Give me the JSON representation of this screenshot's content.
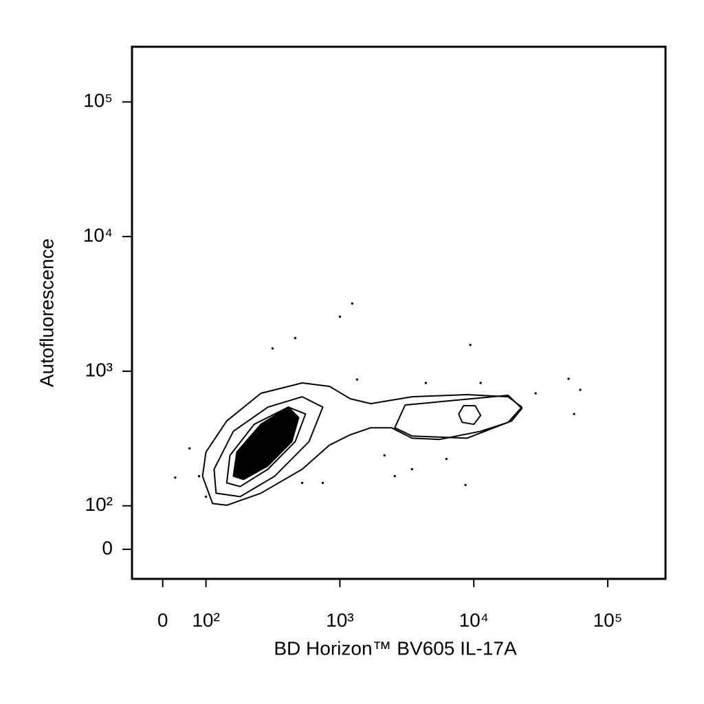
{
  "chart_data": {
    "type": "contour",
    "x_label": "BD Horizon™ BV605 IL-17A",
    "y_label": "Autofluorescence",
    "xscale": "logicle",
    "yscale": "logicle",
    "color": "#000000",
    "xlim": [
      -71,
      270000
    ],
    "ylim": [
      -68,
      257000
    ],
    "xticks": [
      0,
      {
        "value": 100,
        "label": "10²"
      },
      {
        "value": 1000,
        "label": "10³"
      },
      {
        "value": 10000,
        "label": "10⁴"
      },
      {
        "value": 100000,
        "label": "10⁵"
      }
    ],
    "yticks": [
      0,
      {
        "value": 100,
        "label": "10²"
      },
      {
        "value": 1000,
        "label": "10³"
      },
      {
        "value": 10000,
        "label": "10⁴"
      },
      {
        "value": 100000,
        "label": "10⁵"
      }
    ],
    "contours": [
      {
        "filled": false,
        "x": [
          112,
          92,
          100,
          143,
          257,
          523,
          838,
          1194,
          1702,
          2426,
          3455,
          8890,
          18050,
          22860,
          18050,
          11250,
          5546,
          3455,
          2426,
          1702,
          1194,
          838,
          523,
          257,
          143
        ],
        "y": [
          104,
          166,
          251,
          427,
          685,
          818,
          771,
          624,
          574,
          609,
          646,
          670,
          646,
          541,
          417,
          358,
          311,
          318,
          380,
          380,
          337,
          283,
          187,
          124,
          101
        ]
      },
      {
        "filled": false,
        "x": [
          119,
          115,
          160,
          290,
          523,
          745,
          588,
          326,
          180
        ],
        "y": [
          124,
          187,
          358,
          541,
          646,
          541,
          300,
          166,
          117
        ]
      },
      {
        "filled": false,
        "x": [
          143,
          151,
          229,
          412,
          554,
          464,
          290,
          180
        ],
        "y": [
          148,
          237,
          403,
          541,
          481,
          300,
          187,
          139
        ]
      },
      {
        "filled": true,
        "x": [
          160,
          170,
          257,
          412,
          492,
          438,
          290,
          191
        ],
        "y": [
          166,
          251,
          403,
          541,
          453,
          300,
          198,
          157
        ]
      },
      {
        "filled": false,
        "x": [
          3070,
          18050,
          22860,
          19150,
          8890,
          3455,
          2570
        ],
        "y": [
          561,
          662,
          528,
          427,
          318,
          330,
          380
        ]
      },
      {
        "filled": false,
        "x": [
          7710,
          8380,
          10240,
          11250,
          10000,
          8180
        ],
        "y": [
          481,
          554,
          554,
          469,
          403,
          417
        ]
      }
    ],
    "events": {
      "x": [
        1236,
        1000,
        9420,
        464,
        314,
        8670,
        51000,
        62400,
        56100,
        29,
        62,
        2154,
        3455,
        6240,
        4380,
        11250,
        28940,
        745,
        100,
        84,
        1343,
        523,
        2570
      ],
      "y": [
        3180,
        2540,
        1566,
        1762,
        1476,
        143,
        878,
        727,
        481,
        162,
        267,
        237,
        187,
        223,
        818,
        818,
        685,
        148,
        117,
        166,
        867,
        148,
        166
      ]
    }
  }
}
